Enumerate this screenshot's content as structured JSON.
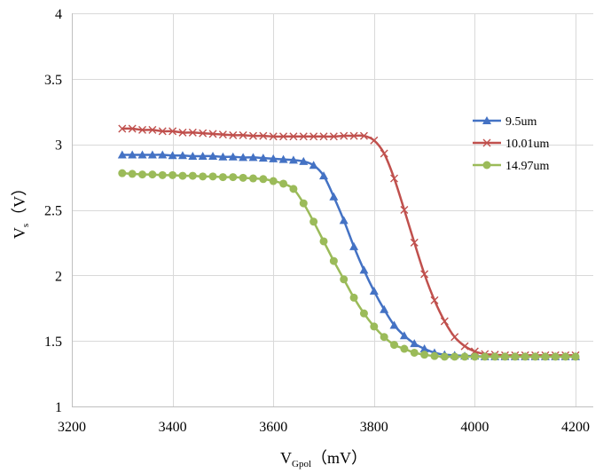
{
  "chart_data": {
    "type": "line",
    "title": "",
    "xlabel": {
      "main": "V",
      "sub": "Gpol",
      "unit": "（mV）"
    },
    "ylabel": {
      "main": "V",
      "sub": "s",
      "unit": "（V）"
    },
    "xlim": [
      3200,
      4200
    ],
    "ylim": [
      1,
      4
    ],
    "xticks": [
      "3200",
      "3400",
      "3600",
      "3800",
      "4000",
      "4200"
    ],
    "xtick_values": [
      3200,
      3400,
      3600,
      3800,
      4000,
      4200
    ],
    "yticks": [
      "1",
      "1.5",
      "2",
      "2.5",
      "3",
      "3.5",
      "4"
    ],
    "ytick_values": [
      1,
      1.5,
      2,
      2.5,
      3,
      3.5,
      4
    ],
    "grid": true,
    "legend_position": "right",
    "x": [
      3300,
      3320,
      3340,
      3360,
      3380,
      3400,
      3420,
      3440,
      3460,
      3480,
      3500,
      3520,
      3540,
      3560,
      3580,
      3600,
      3620,
      3640,
      3660,
      3680,
      3700,
      3720,
      3740,
      3760,
      3780,
      3800,
      3820,
      3840,
      3860,
      3880,
      3900,
      3920,
      3940,
      3960,
      3980,
      4000,
      4020,
      4040,
      4060,
      4080,
      4100,
      4120,
      4140,
      4160,
      4180,
      4200
    ],
    "series": [
      {
        "name": "9.5um",
        "color": "#4472C4",
        "marker": "triangle",
        "values": [
          2.92,
          2.92,
          2.92,
          2.92,
          2.92,
          2.915,
          2.915,
          2.91,
          2.91,
          2.91,
          2.905,
          2.905,
          2.9,
          2.9,
          2.895,
          2.89,
          2.885,
          2.88,
          2.87,
          2.84,
          2.76,
          2.6,
          2.42,
          2.22,
          2.04,
          1.88,
          1.74,
          1.62,
          1.54,
          1.48,
          1.44,
          1.41,
          1.395,
          1.39,
          1.385,
          1.385,
          1.38,
          1.38,
          1.38,
          1.38,
          1.38,
          1.38,
          1.38,
          1.38,
          1.38,
          1.38
        ]
      },
      {
        "name": "10.01um",
        "color": "#C0504D",
        "marker": "x",
        "values": [
          3.12,
          3.12,
          3.11,
          3.11,
          3.1,
          3.1,
          3.09,
          3.09,
          3.085,
          3.08,
          3.075,
          3.07,
          3.07,
          3.065,
          3.065,
          3.06,
          3.06,
          3.06,
          3.06,
          3.06,
          3.06,
          3.06,
          3.065,
          3.065,
          3.065,
          3.03,
          2.93,
          2.74,
          2.5,
          2.25,
          2.01,
          1.81,
          1.65,
          1.53,
          1.46,
          1.42,
          1.4,
          1.395,
          1.39,
          1.39,
          1.39,
          1.39,
          1.39,
          1.39,
          1.39,
          1.39
        ]
      },
      {
        "name": "14.97um",
        "color": "#9BBB59",
        "marker": "circle",
        "values": [
          2.78,
          2.775,
          2.77,
          2.77,
          2.765,
          2.765,
          2.76,
          2.76,
          2.755,
          2.755,
          2.75,
          2.75,
          2.745,
          2.74,
          2.735,
          2.72,
          2.7,
          2.66,
          2.55,
          2.41,
          2.26,
          2.11,
          1.97,
          1.83,
          1.71,
          1.61,
          1.53,
          1.47,
          1.44,
          1.41,
          1.395,
          1.385,
          1.38,
          1.38,
          1.38,
          1.38,
          1.38,
          1.38,
          1.38,
          1.38,
          1.38,
          1.38,
          1.38,
          1.38,
          1.38,
          1.38
        ]
      }
    ]
  },
  "colors": {
    "grid": "#D9D9D9",
    "axis": "#BFBFBF"
  }
}
